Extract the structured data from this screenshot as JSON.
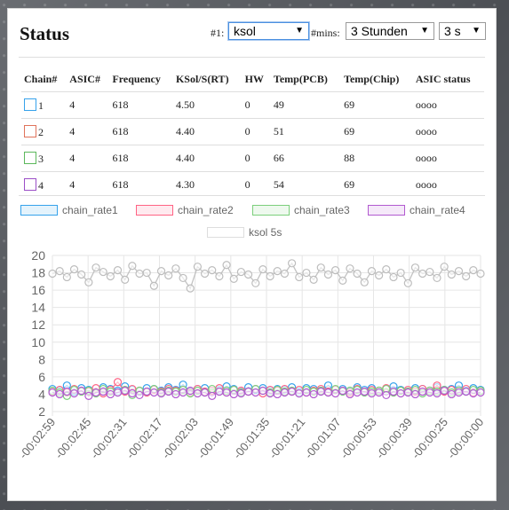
{
  "title": "Status",
  "controls": {
    "device_label": "#1:",
    "device_value": "ksol",
    "mins_label": "#mins:",
    "period_value": "3 Stunden",
    "interval_value": "3 s"
  },
  "table": {
    "headers": [
      "Chain#",
      "ASIC#",
      "Frequency",
      "KSol/S(RT)",
      "HW",
      "Temp(PCB)",
      "Temp(Chip)",
      "ASIC status"
    ],
    "rows": [
      {
        "chain": "1",
        "color": "#36a2eb",
        "asic": "4",
        "freq": "618",
        "ksol": "4.50",
        "hw": "0",
        "pcb": "49",
        "chip": "69",
        "status": "oooo"
      },
      {
        "chain": "2",
        "color": "#e0735b",
        "asic": "4",
        "freq": "618",
        "ksol": "4.40",
        "hw": "0",
        "pcb": "51",
        "chip": "69",
        "status": "oooo"
      },
      {
        "chain": "3",
        "color": "#5cb85c",
        "asic": "4",
        "freq": "618",
        "ksol": "4.40",
        "hw": "0",
        "pcb": "66",
        "chip": "88",
        "status": "oooo"
      },
      {
        "chain": "4",
        "color": "#9b4ec7",
        "asic": "4",
        "freq": "618",
        "ksol": "4.30",
        "hw": "0",
        "pcb": "54",
        "chip": "69",
        "status": "oooo"
      }
    ]
  },
  "legend": [
    {
      "label": "chain_rate1",
      "color": "#36a2eb"
    },
    {
      "label": "chain_rate2",
      "color": "#ff6384"
    },
    {
      "label": "chain_rate3",
      "color": "#7ccf7c"
    },
    {
      "label": "chain_rate4",
      "color": "#b25ad0"
    },
    {
      "label": "ksol 5s",
      "color": "#dddddd"
    }
  ],
  "chart_data": {
    "type": "line",
    "ylim": [
      2,
      20
    ],
    "y_ticks": [
      2,
      4,
      6,
      8,
      10,
      12,
      14,
      16,
      18,
      20
    ],
    "x_ticks": [
      "-00:02:59",
      "-00:02:45",
      "-00:02:31",
      "-00:02:17",
      "-00:02:03",
      "-00:01:49",
      "-00:01:35",
      "-00:01:21",
      "-00:01:07",
      "-00:00:53",
      "-00:00:39",
      "-00:00:25",
      "-00:00:00"
    ],
    "points_per_series": 60,
    "grid": true,
    "series": [
      {
        "name": "ksol 5s",
        "color": "#bdbdbd",
        "values": [
          17.9,
          18.2,
          17.5,
          18.4,
          17.8,
          16.9,
          18.6,
          18.1,
          17.6,
          18.3,
          17.2,
          18.8,
          17.9,
          18.0,
          16.5,
          18.2,
          17.7,
          18.5,
          17.4,
          16.2,
          18.7,
          17.9,
          18.3,
          17.6,
          18.9,
          17.3,
          18.1,
          17.8,
          16.8,
          18.4,
          17.6,
          18.2,
          17.9,
          19.1,
          17.5,
          18.0,
          17.2,
          18.6,
          17.8,
          18.3,
          17.1,
          18.5,
          17.9,
          16.9,
          18.2,
          17.7,
          18.4,
          17.5,
          18.0,
          16.8,
          18.6,
          17.9,
          18.1,
          17.4,
          18.7,
          17.8,
          18.2,
          17.6,
          18.3,
          17.9
        ]
      },
      {
        "name": "chain_rate1",
        "color": "#36a2eb",
        "values": [
          4.6,
          4.4,
          5.0,
          4.3,
          4.7,
          4.5,
          4.2,
          4.8,
          4.6,
          4.4,
          4.9,
          4.5,
          4.3,
          4.7,
          4.6,
          4.4,
          4.8,
          4.5,
          5.1,
          4.3,
          4.6,
          4.7,
          4.4,
          4.5,
          4.9,
          4.6,
          4.3,
          4.8,
          4.5,
          4.7,
          4.4,
          4.6,
          4.5,
          4.8,
          4.3,
          4.7,
          4.6,
          4.4,
          5.0,
          4.5,
          4.6,
          4.3,
          4.8,
          4.5,
          4.7,
          4.4,
          4.6,
          4.9,
          4.5,
          4.3,
          4.7,
          4.6,
          4.4,
          4.8,
          4.5,
          4.6,
          5.0,
          4.4,
          4.7,
          4.5
        ]
      },
      {
        "name": "chain_rate2",
        "color": "#ff6384",
        "values": [
          4.3,
          4.5,
          4.2,
          4.6,
          4.4,
          4.3,
          4.7,
          4.1,
          4.5,
          5.4,
          4.3,
          4.6,
          4.4,
          4.2,
          4.5,
          4.3,
          4.6,
          4.4,
          4.5,
          4.2,
          4.6,
          4.3,
          4.4,
          4.7,
          4.2,
          4.5,
          4.4,
          4.3,
          4.6,
          4.1,
          4.5,
          4.4,
          4.6,
          4.3,
          4.5,
          4.2,
          4.4,
          4.6,
          4.3,
          4.5,
          4.4,
          4.2,
          4.6,
          4.3,
          4.5,
          4.4,
          4.7,
          4.2,
          4.4,
          4.5,
          4.3,
          4.6,
          4.4,
          5.0,
          4.3,
          4.5,
          4.4,
          4.6,
          4.2,
          4.4
        ]
      },
      {
        "name": "chain_rate3",
        "color": "#7ccf7c",
        "values": [
          4.4,
          4.2,
          3.8,
          4.5,
          4.3,
          4.4,
          4.1,
          4.6,
          4.3,
          4.2,
          4.5,
          3.9,
          4.4,
          4.3,
          4.6,
          4.2,
          4.4,
          4.3,
          4.5,
          4.1,
          4.4,
          4.2,
          4.6,
          4.3,
          4.4,
          4.5,
          4.2,
          4.3,
          4.6,
          4.4,
          4.2,
          4.5,
          4.3,
          4.4,
          4.1,
          4.5,
          4.3,
          4.4,
          4.2,
          4.6,
          4.3,
          4.4,
          4.5,
          4.2,
          4.3,
          4.4,
          4.6,
          4.2,
          4.4,
          4.3,
          4.5,
          4.1,
          4.4,
          4.3,
          4.5,
          4.2,
          4.4,
          4.3,
          4.5,
          4.4
        ]
      },
      {
        "name": "chain_rate4",
        "color": "#b25ad0",
        "values": [
          4.2,
          4.0,
          4.3,
          4.1,
          4.4,
          3.8,
          4.2,
          4.3,
          4.0,
          4.2,
          4.4,
          4.1,
          3.9,
          4.3,
          4.2,
          4.1,
          4.3,
          4.0,
          4.2,
          4.4,
          4.1,
          4.2,
          3.8,
          4.3,
          4.2,
          4.0,
          4.1,
          4.3,
          4.2,
          4.4,
          4.1,
          4.0,
          4.2,
          4.3,
          4.1,
          4.2,
          4.0,
          4.3,
          4.2,
          4.1,
          4.4,
          4.0,
          4.2,
          4.3,
          4.1,
          4.2,
          3.9,
          4.3,
          4.1,
          4.2,
          4.0,
          4.3,
          4.2,
          4.1,
          4.4,
          4.0,
          4.2,
          4.3,
          4.1,
          4.2
        ]
      }
    ]
  }
}
